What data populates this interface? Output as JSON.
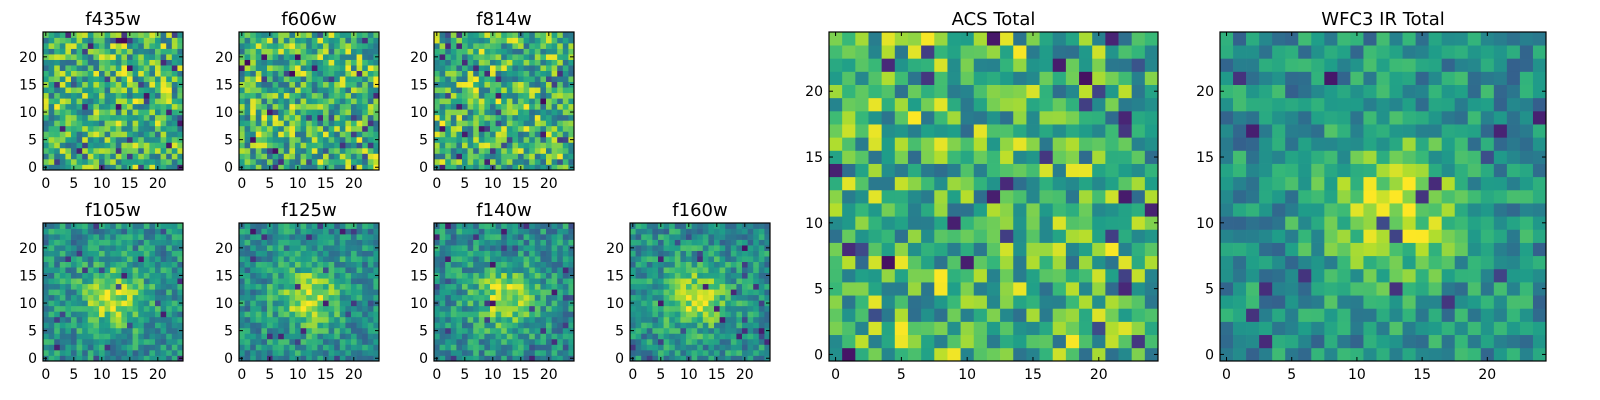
{
  "chart_data": [
    {
      "type": "heatmap",
      "title": "f435w",
      "xlim": [
        -0.5,
        24.5
      ],
      "ylim": [
        -0.5,
        24.5
      ],
      "xticks": [
        0,
        5,
        10,
        15,
        20
      ],
      "yticks": [
        0,
        5,
        10,
        15,
        20
      ],
      "grid": false,
      "colormap": "viridis",
      "rows": 25,
      "cols": 25,
      "pattern": "noise",
      "seed": 11
    },
    {
      "type": "heatmap",
      "title": "f606w",
      "xlim": [
        -0.5,
        24.5
      ],
      "ylim": [
        -0.5,
        24.5
      ],
      "xticks": [
        0,
        5,
        10,
        15,
        20
      ],
      "yticks": [
        0,
        5,
        10,
        15,
        20
      ],
      "grid": false,
      "colormap": "viridis",
      "rows": 25,
      "cols": 25,
      "pattern": "noise",
      "seed": 23
    },
    {
      "type": "heatmap",
      "title": "f814w",
      "xlim": [
        -0.5,
        24.5
      ],
      "ylim": [
        -0.5,
        24.5
      ],
      "xticks": [
        0,
        5,
        10,
        15,
        20
      ],
      "yticks": [
        0,
        5,
        10,
        15,
        20
      ],
      "grid": false,
      "colormap": "viridis",
      "rows": 25,
      "cols": 25,
      "pattern": "noise",
      "seed": 37
    },
    {
      "type": "heatmap",
      "title": "f105w",
      "xlim": [
        -0.5,
        24.5
      ],
      "ylim": [
        -0.5,
        24.5
      ],
      "xticks": [
        0,
        5,
        10,
        15,
        20
      ],
      "yticks": [
        0,
        5,
        10,
        15,
        20
      ],
      "grid": false,
      "colormap": "viridis",
      "rows": 25,
      "cols": 25,
      "pattern": "source",
      "source_center": [
        12,
        11
      ],
      "seed": 41
    },
    {
      "type": "heatmap",
      "title": "f125w",
      "xlim": [
        -0.5,
        24.5
      ],
      "ylim": [
        -0.5,
        24.5
      ],
      "xticks": [
        0,
        5,
        10,
        15,
        20
      ],
      "yticks": [
        0,
        5,
        10,
        15,
        20
      ],
      "grid": false,
      "colormap": "viridis",
      "rows": 25,
      "cols": 25,
      "pattern": "source",
      "source_center": [
        12,
        11
      ],
      "seed": 53
    },
    {
      "type": "heatmap",
      "title": "f140w",
      "xlim": [
        -0.5,
        24.5
      ],
      "ylim": [
        -0.5,
        24.5
      ],
      "xticks": [
        0,
        5,
        10,
        15,
        20
      ],
      "yticks": [
        0,
        5,
        10,
        15,
        20
      ],
      "grid": false,
      "colormap": "viridis",
      "rows": 25,
      "cols": 25,
      "pattern": "source",
      "source_center": [
        12,
        11
      ],
      "seed": 67
    },
    {
      "type": "heatmap",
      "title": "f160w",
      "xlim": [
        -0.5,
        24.5
      ],
      "ylim": [
        -0.5,
        24.5
      ],
      "xticks": [
        0,
        5,
        10,
        15,
        20
      ],
      "yticks": [
        0,
        5,
        10,
        15,
        20
      ],
      "grid": false,
      "colormap": "viridis",
      "rows": 25,
      "cols": 25,
      "pattern": "source",
      "source_center": [
        11,
        11
      ],
      "seed": 79
    },
    {
      "type": "heatmap",
      "title": "ACS Total",
      "xlim": [
        -0.5,
        24.5
      ],
      "ylim": [
        -0.5,
        24.5
      ],
      "xticks": [
        0,
        5,
        10,
        15,
        20
      ],
      "yticks": [
        0,
        5,
        10,
        15,
        20
      ],
      "grid": false,
      "colormap": "viridis",
      "rows": 25,
      "cols": 25,
      "pattern": "noise",
      "seed": 97
    },
    {
      "type": "heatmap",
      "title": "WFC3 IR Total",
      "xlim": [
        -0.5,
        24.5
      ],
      "ylim": [
        -0.5,
        24.5
      ],
      "xticks": [
        0,
        5,
        10,
        15,
        20
      ],
      "yticks": [
        0,
        5,
        10,
        15,
        20
      ],
      "grid": false,
      "colormap": "viridis",
      "rows": 25,
      "cols": 25,
      "pattern": "source",
      "source_center": [
        13,
        11
      ],
      "seed": 109
    }
  ]
}
